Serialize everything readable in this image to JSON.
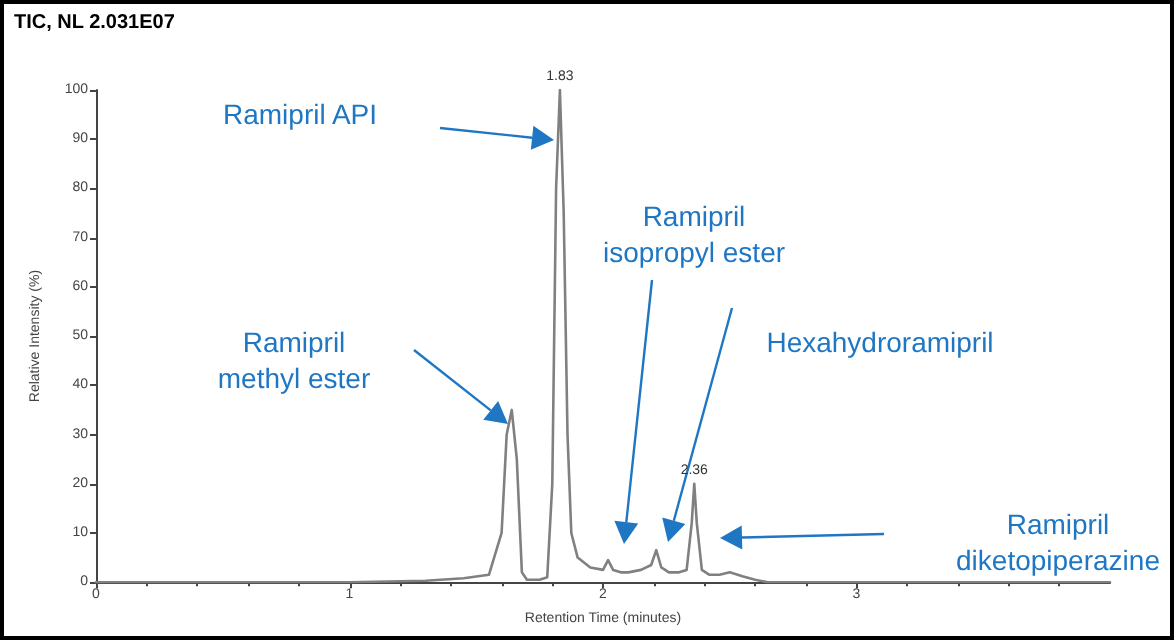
{
  "chart_data": {
    "type": "line",
    "title": "TIC, NL 2.031E07",
    "xlabel": "Retention Time (minutes)",
    "ylabel": "Relative Intensity (%)",
    "x": [
      0,
      0.5,
      1.0,
      1.3,
      1.45,
      1.55,
      1.6,
      1.62,
      1.64,
      1.66,
      1.68,
      1.7,
      1.75,
      1.78,
      1.8,
      1.815,
      1.83,
      1.845,
      1.86,
      1.875,
      1.9,
      1.95,
      2.0,
      2.02,
      2.04,
      2.07,
      2.1,
      2.15,
      2.19,
      2.21,
      2.23,
      2.26,
      2.3,
      2.33,
      2.35,
      2.36,
      2.37,
      2.39,
      2.42,
      2.46,
      2.5,
      2.55,
      2.6,
      2.65,
      3.0,
      3.5,
      4.0
    ],
    "series": [
      {
        "color": "#808080",
        "values": [
          0,
          0,
          0,
          0.3,
          0.8,
          1.5,
          10,
          30,
          35,
          25,
          2,
          0.5,
          0.5,
          1,
          20,
          80,
          100,
          75,
          30,
          10,
          5,
          3,
          2.5,
          4.5,
          2.5,
          2,
          2,
          2.5,
          3.5,
          6.5,
          3,
          2,
          2,
          2.5,
          12,
          20,
          12,
          2.5,
          1.5,
          1.5,
          2,
          1.2,
          0.5,
          0,
          0,
          0,
          0
        ]
      }
    ],
    "xlim": [
      0,
      4
    ],
    "xticks": [
      0,
      1,
      2,
      3
    ],
    "ylim": [
      0,
      100
    ],
    "yticks": [
      0,
      10,
      20,
      30,
      40,
      50,
      60,
      70,
      80,
      90,
      100
    ],
    "grid": false,
    "marker": "none",
    "line_style": "solid",
    "annotations": [
      "Ramipril API",
      "Ramipril\nmethyl ester",
      "Ramipril\nisopropyl ester",
      "Hexahydroramipril",
      "Ramipril\ndiketopiperazine",
      {
        "text": "1.83",
        "x": 1.83,
        "y": 100
      },
      {
        "text": "2.36",
        "x": 2.36,
        "y": 20
      }
    ]
  }
}
